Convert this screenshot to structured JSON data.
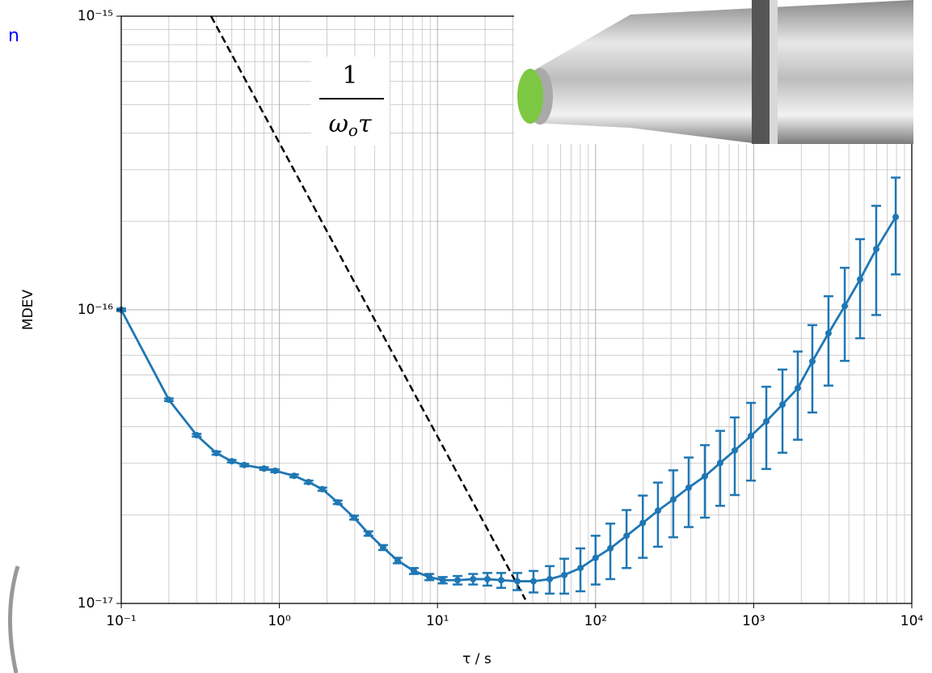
{
  "chart_data": {
    "type": "errorbar-line",
    "edge_text": "n",
    "ylabel": "MDEV",
    "xlabel": "τ / s",
    "xlog": true,
    "ylog": true,
    "grid": true,
    "xlim": [
      0.1,
      10000
    ],
    "ylim": [
      1e-17,
      1e-15
    ],
    "xticks": [
      {
        "value": 0.1,
        "label": "10⁻¹"
      },
      {
        "value": 1,
        "label": "10⁰"
      },
      {
        "value": 10,
        "label": "10¹"
      },
      {
        "value": 100,
        "label": "10²"
      },
      {
        "value": 1000,
        "label": "10³"
      },
      {
        "value": 10000,
        "label": "10⁴"
      }
    ],
    "yticks": [
      {
        "value": 1e-17,
        "label": "10⁻¹⁷"
      },
      {
        "value": 1e-16,
        "label": "10⁻¹⁶"
      },
      {
        "value": 1e-15,
        "label": "10⁻¹⁵"
      }
    ],
    "xminor": [
      0.2,
      0.3,
      0.4,
      0.5,
      0.6,
      0.7,
      0.8,
      0.9,
      2,
      3,
      4,
      5,
      6,
      7,
      8,
      9,
      20,
      30,
      40,
      50,
      60,
      70,
      80,
      90,
      200,
      300,
      400,
      500,
      600,
      700,
      800,
      900,
      2000,
      3000,
      4000,
      5000,
      6000,
      7000,
      8000,
      9000
    ],
    "yminor": [
      2e-17,
      3e-17,
      4e-17,
      5e-17,
      6e-17,
      7e-17,
      8e-17,
      9e-17,
      2e-16,
      3e-16,
      4e-16,
      5e-16,
      6e-16,
      7e-16,
      8e-16,
      9e-16
    ],
    "annotation": {
      "numerator": "1",
      "denominator": [
        "ω",
        "o",
        "τ"
      ]
    },
    "reference_line": {
      "x": [
        0.37,
        36
      ],
      "values": [
        1e-15,
        1.03e-17
      ],
      "color": "#000000"
    },
    "series": [
      {
        "color": "#1f77b4",
        "x": [
          0.1,
          0.2,
          0.3,
          0.4,
          0.5,
          0.6,
          0.8,
          0.94,
          1.24,
          1.53,
          1.87,
          2.34,
          2.97,
          3.66,
          4.53,
          5.6,
          7.09,
          8.88,
          10.8,
          13.4,
          16.8,
          20.7,
          25.3,
          32,
          40.5,
          51.3,
          63.4,
          80.2,
          100,
          124,
          157,
          199,
          248,
          310,
          388,
          491,
          614,
          759,
          961,
          1202,
          1521,
          1901,
          2350,
          2972,
          3767,
          4710,
          5957,
          7910
        ],
        "values": [
          1e-16,
          4.94e-17,
          3.74e-17,
          3.25e-17,
          3.05e-17,
          2.96e-17,
          2.88e-17,
          2.83e-17,
          2.72e-17,
          2.59e-17,
          2.45e-17,
          2.21e-17,
          1.96e-17,
          1.73e-17,
          1.55e-17,
          1.4e-17,
          1.29e-17,
          1.23e-17,
          1.2e-17,
          1.2e-17,
          1.21e-17,
          1.21e-17,
          1.2e-17,
          1.19e-17,
          1.19e-17,
          1.21e-17,
          1.25e-17,
          1.32e-17,
          1.43e-17,
          1.54e-17,
          1.7e-17,
          1.88e-17,
          2.07e-17,
          2.26e-17,
          2.48e-17,
          2.71e-17,
          3.01e-17,
          3.32e-17,
          3.72e-17,
          4.17e-17,
          4.76e-17,
          5.41e-17,
          6.67e-17,
          8.32e-17,
          1.03e-16,
          1.27e-16,
          1.61e-16,
          2.07e-16
        ],
        "errors": [
          1e-18,
          5e-19,
          4e-19,
          4e-19,
          3e-19,
          3e-19,
          3e-19,
          3e-19,
          3e-19,
          3e-19,
          3e-19,
          3e-19,
          3e-19,
          3e-19,
          3e-19,
          3e-19,
          3e-19,
          3e-19,
          3e-19,
          4e-19,
          5e-19,
          6e-19,
          7e-19,
          8e-19,
          1e-18,
          1.3e-18,
          1.7e-18,
          2.2e-18,
          2.7e-18,
          3.3e-18,
          3.8e-18,
          4.5e-18,
          5.1e-18,
          5.8e-18,
          6.6e-18,
          7.5e-18,
          8.6e-18,
          9.8e-18,
          1.1e-17,
          1.3e-17,
          1.5e-17,
          1.8e-17,
          2.2e-17,
          2.8e-17,
          3.6e-17,
          4.7e-17,
          6.5e-17,
          7.5e-17
        ]
      }
    ]
  }
}
